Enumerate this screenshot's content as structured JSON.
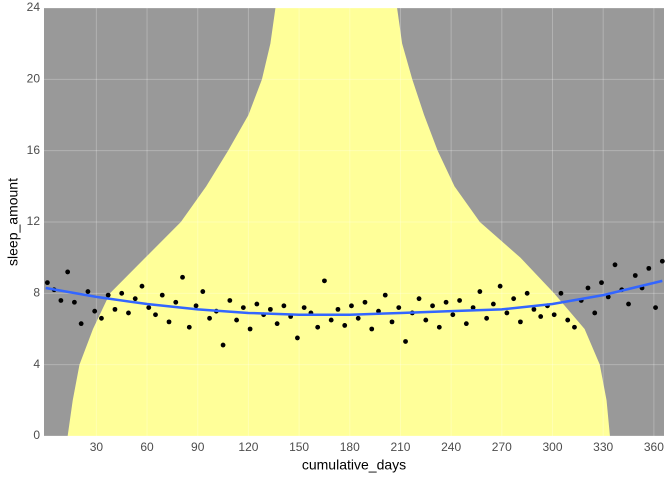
{
  "chart_data": {
    "type": "scatter",
    "xlabel": "cumulative_days",
    "ylabel": "sleep_amount",
    "xlim": [
      -1,
      366
    ],
    "ylim": [
      0,
      24
    ],
    "xticks": [
      30,
      60,
      90,
      120,
      150,
      180,
      210,
      240,
      270,
      300,
      330,
      360
    ],
    "yticks": [
      0,
      4,
      8,
      12,
      16,
      20,
      24
    ],
    "grid": true,
    "background": "#999999",
    "point_color": "#000000",
    "band": {
      "color": "#ffff99",
      "y": [
        0,
        2,
        4,
        6,
        8,
        10,
        12,
        14,
        16,
        18,
        20,
        22,
        24
      ],
      "x_left": [
        13,
        16,
        20,
        28,
        38,
        59,
        80,
        95,
        108,
        120,
        128,
        133,
        136
      ],
      "x_right": [
        334,
        332,
        328,
        319,
        301,
        281,
        257,
        242,
        232,
        224,
        217,
        211,
        208
      ]
    },
    "smooth": {
      "color": "#3366ff",
      "x": [
        0,
        30,
        60,
        90,
        120,
        150,
        180,
        210,
        240,
        270,
        300,
        330,
        365
      ],
      "values": [
        8.3,
        7.8,
        7.4,
        7.1,
        6.9,
        6.8,
        6.8,
        6.9,
        7.0,
        7.1,
        7.4,
        7.9,
        8.7
      ]
    },
    "x": [
      1,
      5,
      9,
      13,
      17,
      21,
      25,
      29,
      33,
      37,
      41,
      45,
      49,
      53,
      57,
      61,
      65,
      69,
      73,
      77,
      81,
      85,
      89,
      93,
      97,
      101,
      105,
      109,
      113,
      117,
      121,
      125,
      129,
      133,
      137,
      141,
      145,
      149,
      153,
      157,
      161,
      165,
      169,
      173,
      177,
      181,
      185,
      189,
      193,
      197,
      201,
      205,
      209,
      213,
      217,
      221,
      225,
      229,
      233,
      237,
      241,
      245,
      249,
      253,
      257,
      261,
      265,
      269,
      273,
      277,
      281,
      285,
      289,
      293,
      297,
      301,
      305,
      309,
      313,
      317,
      321,
      325,
      329,
      333,
      337,
      341,
      345,
      349,
      353,
      357,
      361,
      365
    ],
    "values": [
      8.6,
      8.2,
      7.6,
      9.2,
      7.5,
      6.3,
      8.1,
      7.0,
      6.6,
      7.9,
      7.1,
      8.0,
      6.9,
      7.7,
      8.4,
      7.2,
      6.8,
      7.9,
      6.4,
      7.5,
      8.9,
      6.1,
      7.3,
      8.1,
      6.6,
      7.0,
      5.1,
      7.6,
      6.5,
      7.2,
      6.0,
      7.4,
      6.8,
      7.1,
      6.3,
      7.3,
      6.7,
      5.5,
      7.2,
      6.9,
      6.1,
      8.7,
      6.5,
      7.1,
      6.2,
      7.3,
      6.6,
      7.5,
      6.0,
      7.0,
      7.9,
      6.4,
      7.2,
      5.3,
      6.9,
      7.7,
      6.5,
      7.3,
      6.1,
      7.5,
      6.8,
      7.6,
      6.3,
      7.2,
      8.1,
      6.6,
      7.4,
      8.4,
      6.9,
      7.7,
      6.4,
      8.0,
      7.1,
      6.7,
      7.3,
      6.8,
      8.0,
      6.5,
      6.1,
      7.6,
      8.3,
      6.9,
      8.6,
      7.8,
      9.6,
      8.2,
      7.4,
      9.0,
      8.3,
      9.4,
      7.2,
      9.8
    ]
  }
}
